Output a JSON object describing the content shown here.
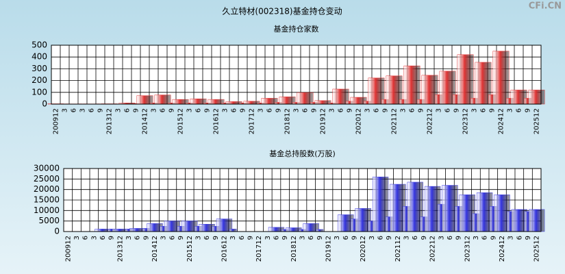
{
  "title": "久立特材(002318)基金持仓变动",
  "watermark": "CFi.CN",
  "chart_data": [
    {
      "type": "bar",
      "title": "基金持仓家数",
      "color": "#e03434",
      "categories": [
        "200912",
        "3",
        "6",
        "3",
        "6",
        "9",
        "201312",
        "3",
        "6",
        "9",
        "201412",
        "3",
        "6",
        "9",
        "201512",
        "3",
        "6",
        "9",
        "201612",
        "3",
        "6",
        "9",
        "201712",
        "3",
        "6",
        "9",
        "201812",
        "3",
        "6",
        "9",
        "201912",
        "3",
        "6",
        "9",
        "202012",
        "3",
        "6",
        "9",
        "202112",
        "3",
        "6",
        "9",
        "202212",
        "3",
        "6",
        "9",
        "202312",
        "3",
        "6",
        "9",
        "202412",
        "3",
        "6",
        "9",
        "202512"
      ],
      "values": [
        3,
        2,
        2,
        2,
        2,
        2,
        3,
        2,
        10,
        5,
        72,
        10,
        78,
        10,
        40,
        10,
        45,
        10,
        40,
        10,
        22,
        10,
        25,
        10,
        50,
        15,
        62,
        15,
        98,
        15,
        30,
        10,
        128,
        25,
        58,
        25,
        222,
        40,
        240,
        40,
        325,
        40,
        245,
        80,
        280,
        80,
        420,
        50,
        355,
        80,
        450,
        50,
        120,
        50,
        120
      ],
      "ylim": [
        0,
        500
      ],
      "yticks": [
        0,
        100,
        200,
        300,
        400,
        500
      ],
      "grid": true
    },
    {
      "type": "bar",
      "title": "基金总持股数(万股)",
      "color": "#3434e0",
      "categories": [
        "200912",
        "3",
        "6",
        "3",
        "6",
        "9",
        "201312",
        "3",
        "6",
        "9",
        "201412",
        "3",
        "6",
        "9",
        "201512",
        "3",
        "6",
        "9",
        "201612",
        "3",
        "6",
        "9",
        "201712",
        "3",
        "6",
        "9",
        "201812",
        "3",
        "6",
        "9",
        "201912",
        "3",
        "6",
        "9",
        "202012",
        "3",
        "6",
        "9",
        "202112",
        "3",
        "6",
        "9",
        "202212",
        "3",
        "6",
        "9",
        "202312",
        "3",
        "6",
        "9",
        "202412",
        "3",
        "6",
        "9",
        "202512"
      ],
      "values": [
        0,
        0,
        0,
        0,
        1200,
        1200,
        1200,
        1200,
        1500,
        1500,
        3800,
        2500,
        5000,
        2500,
        5000,
        2500,
        3500,
        2500,
        6000,
        1200,
        0,
        0,
        0,
        0,
        2000,
        1000,
        1800,
        1000,
        3800,
        1000,
        0,
        0,
        8000,
        6000,
        11000,
        5000,
        26000,
        7000,
        22500,
        12000,
        23500,
        7000,
        21500,
        13000,
        22000,
        12000,
        17500,
        8500,
        18500,
        12000,
        17500,
        9500,
        10500,
        9500,
        10500
      ],
      "ylim": [
        0,
        30000
      ],
      "yticks": [
        0,
        5000,
        10000,
        15000,
        20000,
        25000,
        30000
      ],
      "grid": true
    }
  ]
}
